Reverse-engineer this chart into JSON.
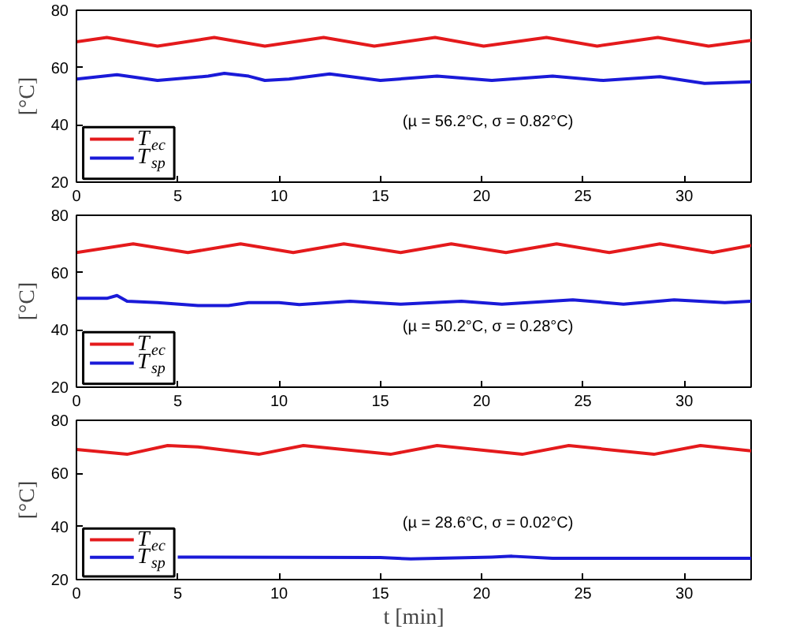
{
  "chart_data": [
    {
      "type": "line",
      "ylabel": "[°C]",
      "xlim": [
        0,
        33.3
      ],
      "ylim": [
        20,
        80
      ],
      "xticks": [
        0,
        5,
        10,
        15,
        20,
        25,
        30
      ],
      "yticks": [
        20,
        40,
        60,
        80
      ],
      "grid": false,
      "legend": "bottom left",
      "annotations": [
        "(µ = 56.2°C, σ = 0.82°C)"
      ],
      "series": [
        {
          "name": "T$_{ec}$",
          "color": "#e41a1c",
          "x": [
            0,
            1.5,
            4,
            6.8,
            9.3,
            12.2,
            14.7,
            17.7,
            20.1,
            23.2,
            25.7,
            28.7,
            31.2,
            33.3
          ],
          "values": [
            69,
            70.5,
            67.5,
            70.5,
            67.5,
            70.5,
            67.5,
            70.5,
            67.5,
            70.5,
            67.5,
            70.5,
            67.5,
            69.5
          ]
        },
        {
          "name": "T$_{sp}$",
          "color": "#1a1ad8",
          "x": [
            0,
            2,
            4,
            6.5,
            7.3,
            8.5,
            9.3,
            10.5,
            12.5,
            15,
            17.8,
            20.5,
            23.5,
            26,
            28.8,
            31,
            33.3
          ],
          "values": [
            56,
            57.5,
            55.5,
            57,
            58,
            57,
            55.5,
            56,
            57.8,
            55.5,
            57,
            55.5,
            57,
            55.5,
            56.8,
            54.5,
            55
          ]
        }
      ]
    },
    {
      "type": "line",
      "ylabel": "[°C]",
      "xlim": [
        0,
        33.3
      ],
      "ylim": [
        20,
        80
      ],
      "xticks": [
        0,
        5,
        10,
        15,
        20,
        25,
        30
      ],
      "yticks": [
        20,
        40,
        60,
        80
      ],
      "grid": false,
      "legend": "bottom left",
      "annotations": [
        "(µ = 50.2°C, σ = 0.28°C)"
      ],
      "series": [
        {
          "name": "T$_{ec}$",
          "color": "#e41a1c",
          "x": [
            0,
            2.8,
            5.5,
            8.1,
            10.7,
            13.2,
            16,
            18.5,
            21.2,
            23.7,
            26.3,
            28.8,
            31.4,
            33.3
          ],
          "values": [
            67,
            70,
            67,
            70,
            67,
            70,
            67,
            70,
            67,
            70,
            67,
            70,
            67,
            69.5
          ]
        },
        {
          "name": "T$_{sp}$",
          "color": "#1a1ad8",
          "x": [
            0,
            1.5,
            2,
            2.5,
            4,
            6,
            7.5,
            8.5,
            10,
            11,
            13.5,
            16,
            19,
            21,
            24.5,
            27,
            29.5,
            32,
            33.3
          ],
          "values": [
            51,
            51,
            52,
            50,
            49.5,
            48.5,
            48.5,
            49.5,
            49.5,
            48.8,
            50,
            49,
            50,
            49,
            50.5,
            49,
            50.5,
            49.5,
            50
          ]
        }
      ]
    },
    {
      "type": "line",
      "xlabel": "t [min]",
      "ylabel": "[°C]",
      "xlim": [
        0,
        33.3
      ],
      "ylim": [
        20,
        80
      ],
      "xticks": [
        0,
        5,
        10,
        15,
        20,
        25,
        30
      ],
      "yticks": [
        20,
        40,
        60,
        80
      ],
      "grid": false,
      "legend": "bottom left",
      "annotations": [
        "(µ = 28.6°C, σ = 0.02°C)"
      ],
      "series": [
        {
          "name": "T$_{ec}$",
          "color": "#e41a1c",
          "x": [
            0,
            2.5,
            4.5,
            6,
            9,
            11.2,
            15.5,
            17.8,
            22,
            24.3,
            28.5,
            30.8,
            33.3
          ],
          "values": [
            69,
            67.2,
            70.5,
            70,
            67.2,
            70.5,
            67.2,
            70.5,
            67.2,
            70.5,
            67.2,
            70.5,
            68.5
          ]
        },
        {
          "name": "T$_{sp}$",
          "color": "#1a1ad8",
          "x": [
            5,
            15,
            16.5,
            20.5,
            21.5,
            23.5,
            33.3
          ],
          "values": [
            28.5,
            28.3,
            27.8,
            28.5,
            28.8,
            28,
            28
          ]
        }
      ]
    }
  ]
}
